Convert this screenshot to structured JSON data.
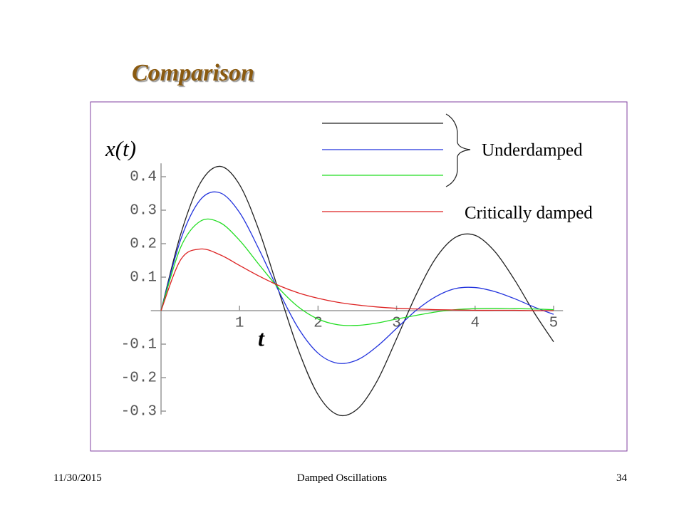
{
  "slide": {
    "title": "Comparison",
    "footer_date": "11/30/2015",
    "footer_center": "Damped Oscillations",
    "page_number": "34"
  },
  "chart_data": {
    "type": "line",
    "y_label": "x(t)",
    "x_label": "t",
    "legend": [
      "Underdamped",
      "Critically damped"
    ],
    "x": [
      0,
      0.25,
      0.5,
      0.75,
      1,
      1.25,
      1.5,
      1.75,
      2,
      2.25,
      2.5,
      2.75,
      3,
      3.25,
      3.5,
      3.75,
      4,
      4.25,
      4.5,
      4.75,
      5
    ],
    "series": [
      {
        "color": "#222222",
        "values": [
          0,
          0.228,
          0.381,
          0.431,
          0.376,
          0.238,
          0.058,
          -0.118,
          -0.251,
          -0.311,
          -0.294,
          -0.211,
          -0.084,
          0.048,
          0.157,
          0.219,
          0.225,
          0.177,
          0.093,
          -0.005,
          -0.093
        ]
      },
      {
        "color": "#2233dd",
        "values": [
          0,
          0.212,
          0.331,
          0.352,
          0.293,
          0.182,
          0.058,
          -0.053,
          -0.127,
          -0.157,
          -0.147,
          -0.107,
          -0.053,
          0.001,
          0.042,
          0.066,
          0.069,
          0.057,
          0.036,
          0.011,
          -0.011
        ]
      },
      {
        "color": "#22dd22",
        "values": [
          0,
          0.189,
          0.267,
          0.263,
          0.21,
          0.137,
          0.067,
          0.011,
          -0.025,
          -0.042,
          -0.044,
          -0.037,
          -0.025,
          -0.014,
          -0.004,
          0.003,
          0.006,
          0.007,
          0.006,
          0.005,
          0.003
        ]
      },
      {
        "color": "#dd2222",
        "values": [
          0,
          0.152,
          0.184,
          0.167,
          0.135,
          0.103,
          0.075,
          0.053,
          0.037,
          0.025,
          0.017,
          0.011,
          0.007,
          0.005,
          0.003,
          0.002,
          0.001,
          0.001,
          0.001,
          0,
          0
        ]
      }
    ],
    "xlim": [
      -0.13,
      5.12
    ],
    "ylim": [
      -0.31,
      0.44
    ],
    "xticks": [
      1,
      2,
      3,
      4,
      5
    ],
    "yticks": [
      -0.3,
      -0.2,
      -0.1,
      0.1,
      0.2,
      0.3,
      0.4
    ]
  }
}
